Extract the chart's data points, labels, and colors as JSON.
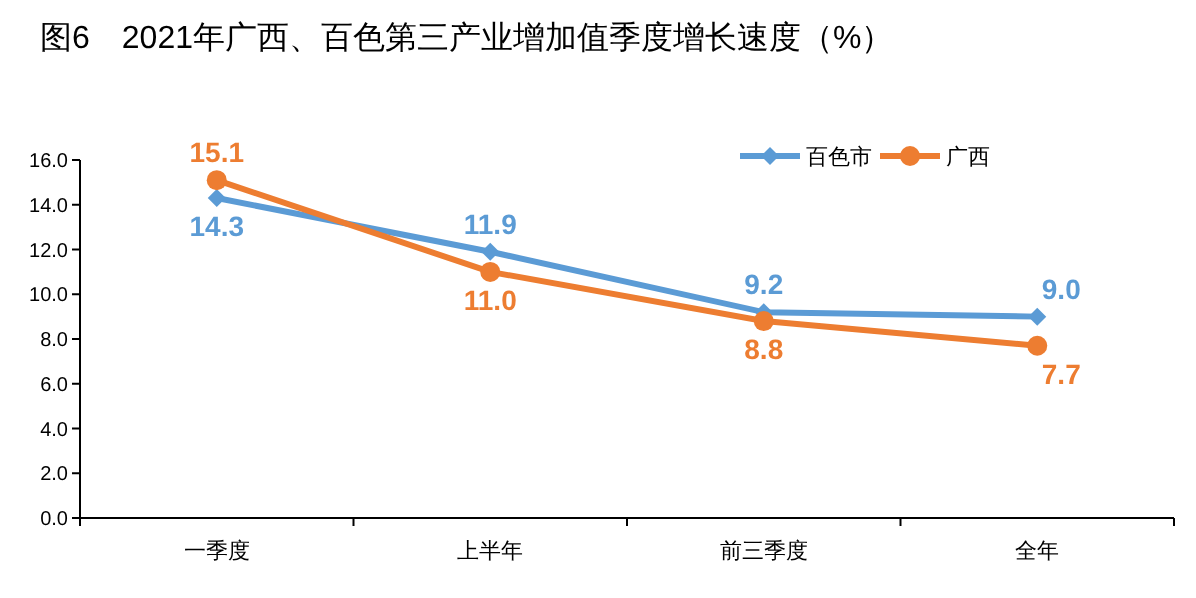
{
  "chart_data": {
    "type": "line",
    "title": "图6　2021年广西、百色第三产业增加值季度增长速度（%）",
    "categories": [
      "一季度",
      "上半年",
      "前三季度",
      "全年"
    ],
    "series": [
      {
        "name": "百色市",
        "color": "#5b9bd5",
        "marker": "diamond",
        "values": [
          14.3,
          11.9,
          9.2,
          9.0
        ],
        "value_labels": [
          "14.3",
          "11.9",
          "9.2",
          "9.0"
        ]
      },
      {
        "name": "广西",
        "color": "#ed7d31",
        "marker": "circle",
        "values": [
          15.1,
          11.0,
          8.8,
          7.7
        ],
        "value_labels": [
          "15.1",
          "11.0",
          "8.8",
          "7.7"
        ]
      }
    ],
    "ylim": [
      0,
      16
    ],
    "yticks": [
      {
        "value": 0,
        "label": "0.0"
      },
      {
        "value": 2,
        "label": "2.0"
      },
      {
        "value": 4,
        "label": "4.0"
      },
      {
        "value": 6,
        "label": "6.0"
      },
      {
        "value": 8,
        "label": "8.0"
      },
      {
        "value": 10,
        "label": "10.0"
      },
      {
        "value": 12,
        "label": "12.0"
      },
      {
        "value": 14,
        "label": "14.0"
      },
      {
        "value": 16,
        "label": "16.0"
      }
    ],
    "grid": false,
    "legend": "top right"
  }
}
